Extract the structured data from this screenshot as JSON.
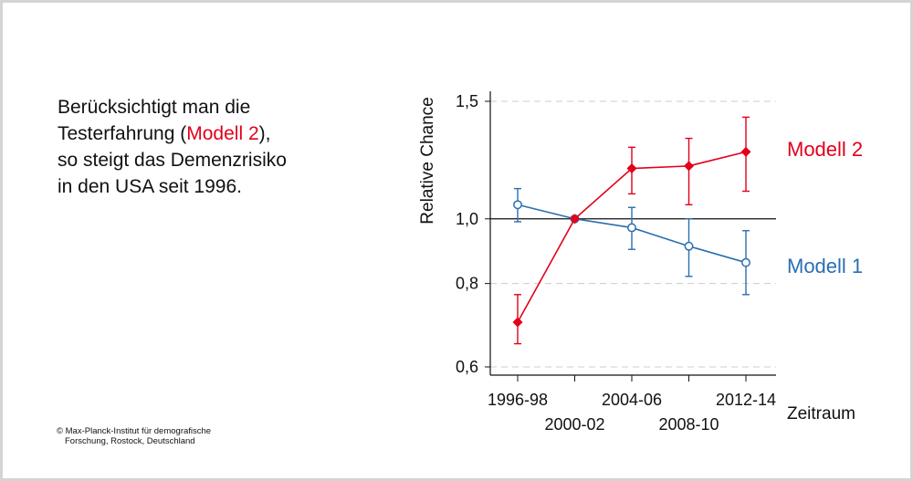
{
  "headline": {
    "line1": "Berücksichtigt man die",
    "line2_pre": "Testerfahrung (",
    "line2_accent": "Modell 2",
    "line2_post": "),",
    "line3": "so steigt das Demenzrisiko",
    "line4": "in den USA seit 1996."
  },
  "copyright": {
    "line1": "© Max-Planck-Institut für demografische",
    "line2": "Forschung, Rostock, Deutschland"
  },
  "colors": {
    "modell1": "#2a6eb0",
    "modell2": "#e2001a",
    "text": "#111111",
    "grid": "#cccccc"
  },
  "chart_data": {
    "type": "line",
    "ylabel": "Relative Chance",
    "xlabel": "Zeitraum",
    "y_scale": "log",
    "ylim": [
      0.58,
      1.5
    ],
    "yticks": [
      0.6,
      0.8,
      1.0,
      1.5
    ],
    "ytick_labels": [
      "0,6",
      "0,8",
      "1,0",
      "1,5"
    ],
    "reference_line": 1.0,
    "categories": [
      "1996-98",
      "2000-02",
      "2004-06",
      "2008-10",
      "2012-14"
    ],
    "series": [
      {
        "name": "Modell 1",
        "color": "#2a6eb0",
        "marker": "open-circle",
        "values": [
          1.05,
          1.0,
          0.97,
          0.91,
          0.86
        ],
        "ci_low": [
          0.99,
          1.0,
          0.9,
          0.82,
          0.77
        ],
        "ci_high": [
          1.11,
          1.0,
          1.04,
          1.0,
          0.96
        ]
      },
      {
        "name": "Modell 2",
        "color": "#e2001a",
        "marker": "filled-diamond",
        "values": [
          0.7,
          1.0,
          1.19,
          1.2,
          1.26
        ],
        "ci_low": [
          0.65,
          1.0,
          1.09,
          1.05,
          1.1
        ],
        "ci_high": [
          0.77,
          1.0,
          1.28,
          1.32,
          1.42
        ]
      }
    ]
  }
}
